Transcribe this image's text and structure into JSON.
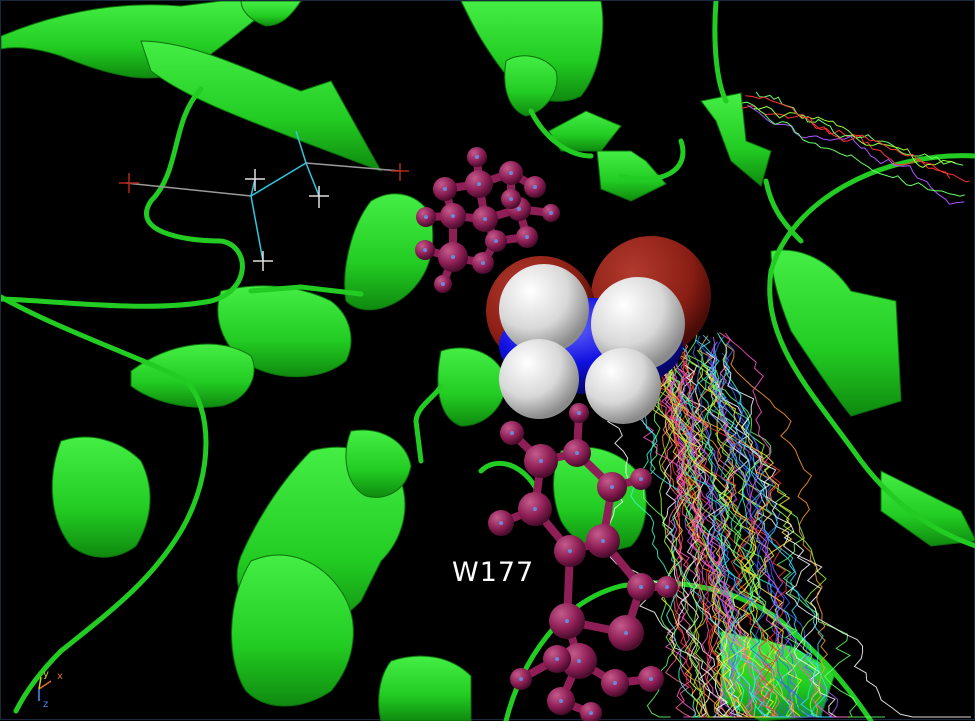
{
  "viewer": {
    "residue_label": "W177",
    "axes": {
      "x": "x",
      "y": "y",
      "z": "z"
    },
    "colors": {
      "background": "#000000",
      "protein_ribbon": "#22cc22",
      "ligand": "#8e1f56",
      "nitrogen": "#1212e0",
      "hydrogen": "#dcdcdc",
      "oxygen": "#8a1e14",
      "axis_x": "#e07020",
      "axis_y": "#d0d020",
      "axis_z": "#4a8aff"
    }
  }
}
